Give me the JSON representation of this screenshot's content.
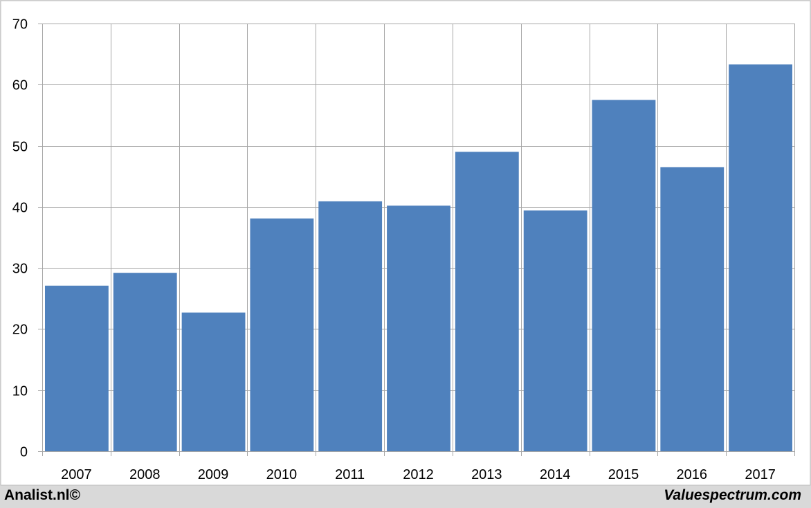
{
  "chart_data": {
    "type": "bar",
    "categories": [
      "2007",
      "2008",
      "2009",
      "2010",
      "2011",
      "2012",
      "2013",
      "2014",
      "2015",
      "2016",
      "2017"
    ],
    "values": [
      27.1,
      29.2,
      22.7,
      38.1,
      40.9,
      40.2,
      49.0,
      39.4,
      57.5,
      46.5,
      63.3
    ],
    "ylim": [
      0,
      70
    ],
    "yticks": [
      0,
      10,
      20,
      30,
      40,
      50,
      60,
      70
    ],
    "grid": true,
    "bar_color": "#4f81bd",
    "grid_color": "#a6a6a6"
  },
  "footer": {
    "left_text": "Analist.nl©",
    "right_text": "Valuespectrum.com"
  }
}
